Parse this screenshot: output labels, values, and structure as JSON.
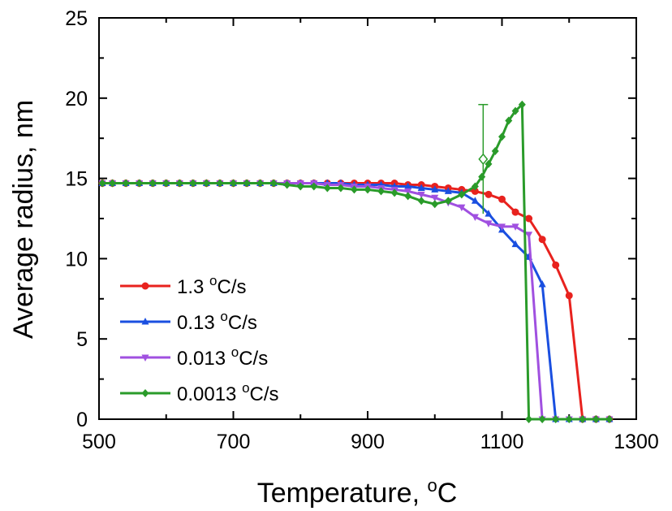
{
  "chart_data": {
    "type": "line",
    "xlabel_text": "Temperature, ",
    "xlabel_sup": "o",
    "xlabel_unit": "C",
    "ylabel": "Average radius, nm",
    "xlim": [
      500,
      1300
    ],
    "ylim": [
      0,
      25
    ],
    "x_ticks": [
      500,
      700,
      900,
      1100,
      1300
    ],
    "y_ticks": [
      0,
      5,
      10,
      15,
      20,
      25
    ],
    "grid": false,
    "legend_position": "bottom-left",
    "series": [
      {
        "label_value": "1.3 ",
        "label_sup": "o",
        "label_unit": "C/s",
        "color": "#e8221e",
        "marker": "circle",
        "x": [
          505,
          520,
          540,
          560,
          580,
          600,
          620,
          640,
          660,
          680,
          700,
          720,
          740,
          760,
          780,
          800,
          820,
          840,
          860,
          880,
          900,
          920,
          940,
          960,
          980,
          1000,
          1020,
          1040,
          1060,
          1080,
          1100,
          1120,
          1140,
          1160,
          1180,
          1200,
          1220,
          1240,
          1260
        ],
        "y": [
          14.7,
          14.7,
          14.7,
          14.7,
          14.7,
          14.7,
          14.7,
          14.7,
          14.7,
          14.7,
          14.7,
          14.7,
          14.7,
          14.7,
          14.7,
          14.7,
          14.7,
          14.7,
          14.7,
          14.7,
          14.7,
          14.7,
          14.7,
          14.6,
          14.6,
          14.5,
          14.4,
          14.3,
          14.2,
          14.0,
          13.7,
          12.9,
          12.5,
          11.2,
          9.6,
          7.7,
          0,
          0,
          0
        ]
      },
      {
        "label_value": "0.13 ",
        "label_sup": "o",
        "label_unit": "C/s",
        "color": "#1a4fe0",
        "marker": "triangle-up",
        "x": [
          505,
          520,
          540,
          560,
          580,
          600,
          620,
          640,
          660,
          680,
          700,
          720,
          740,
          760,
          780,
          800,
          820,
          840,
          860,
          880,
          900,
          920,
          940,
          960,
          980,
          1000,
          1020,
          1040,
          1060,
          1080,
          1100,
          1120,
          1140,
          1160,
          1180,
          1200,
          1220,
          1240,
          1260
        ],
        "y": [
          14.7,
          14.7,
          14.7,
          14.7,
          14.7,
          14.7,
          14.7,
          14.7,
          14.7,
          14.7,
          14.7,
          14.7,
          14.7,
          14.7,
          14.7,
          14.7,
          14.7,
          14.7,
          14.7,
          14.6,
          14.6,
          14.6,
          14.5,
          14.5,
          14.4,
          14.3,
          14.2,
          14.1,
          13.6,
          12.8,
          11.8,
          10.9,
          10.1,
          8.4,
          0,
          0,
          0,
          0,
          0
        ]
      },
      {
        "label_value": "0.013 ",
        "label_sup": "o",
        "label_unit": "C/s",
        "color": "#a050e0",
        "marker": "triangle-down",
        "x": [
          505,
          520,
          540,
          560,
          580,
          600,
          620,
          640,
          660,
          680,
          700,
          720,
          740,
          760,
          780,
          800,
          820,
          840,
          860,
          880,
          900,
          920,
          940,
          960,
          980,
          1000,
          1020,
          1040,
          1060,
          1080,
          1100,
          1120,
          1140,
          1160,
          1180,
          1200,
          1220,
          1240,
          1260
        ],
        "y": [
          14.7,
          14.7,
          14.7,
          14.7,
          14.7,
          14.7,
          14.7,
          14.7,
          14.7,
          14.7,
          14.7,
          14.7,
          14.7,
          14.7,
          14.7,
          14.7,
          14.7,
          14.6,
          14.6,
          14.5,
          14.5,
          14.4,
          14.3,
          14.2,
          14.0,
          13.8,
          13.5,
          13.2,
          12.6,
          12.2,
          12.0,
          12.0,
          11.5,
          0,
          0,
          0,
          0,
          0,
          0
        ]
      },
      {
        "label_value": "0.0013 ",
        "label_sup": "o",
        "label_unit": "C/s",
        "color": "#2a9b2a",
        "marker": "diamond",
        "x": [
          505,
          520,
          540,
          560,
          580,
          600,
          620,
          640,
          660,
          680,
          700,
          720,
          740,
          760,
          780,
          800,
          820,
          840,
          860,
          880,
          900,
          920,
          940,
          960,
          980,
          1000,
          1020,
          1040,
          1060,
          1070,
          1080,
          1090,
          1100,
          1110,
          1120,
          1130,
          1140,
          1160,
          1180,
          1200,
          1220,
          1240,
          1260
        ],
        "y": [
          14.7,
          14.7,
          14.7,
          14.7,
          14.7,
          14.7,
          14.7,
          14.7,
          14.7,
          14.7,
          14.7,
          14.7,
          14.7,
          14.7,
          14.6,
          14.5,
          14.5,
          14.4,
          14.4,
          14.3,
          14.3,
          14.2,
          14.1,
          13.9,
          13.6,
          13.4,
          13.6,
          14.0,
          14.5,
          15.1,
          15.9,
          16.7,
          17.6,
          18.6,
          19.2,
          19.6,
          0,
          0,
          0,
          0,
          0,
          0,
          0
        ]
      }
    ],
    "annotations": [
      {
        "type": "errorbar-point",
        "x": 1072,
        "y": 16.2,
        "y_upper": 19.6,
        "y_lower": 12.8,
        "color": "#2a9b2a",
        "marker": "diamond-open"
      }
    ]
  }
}
